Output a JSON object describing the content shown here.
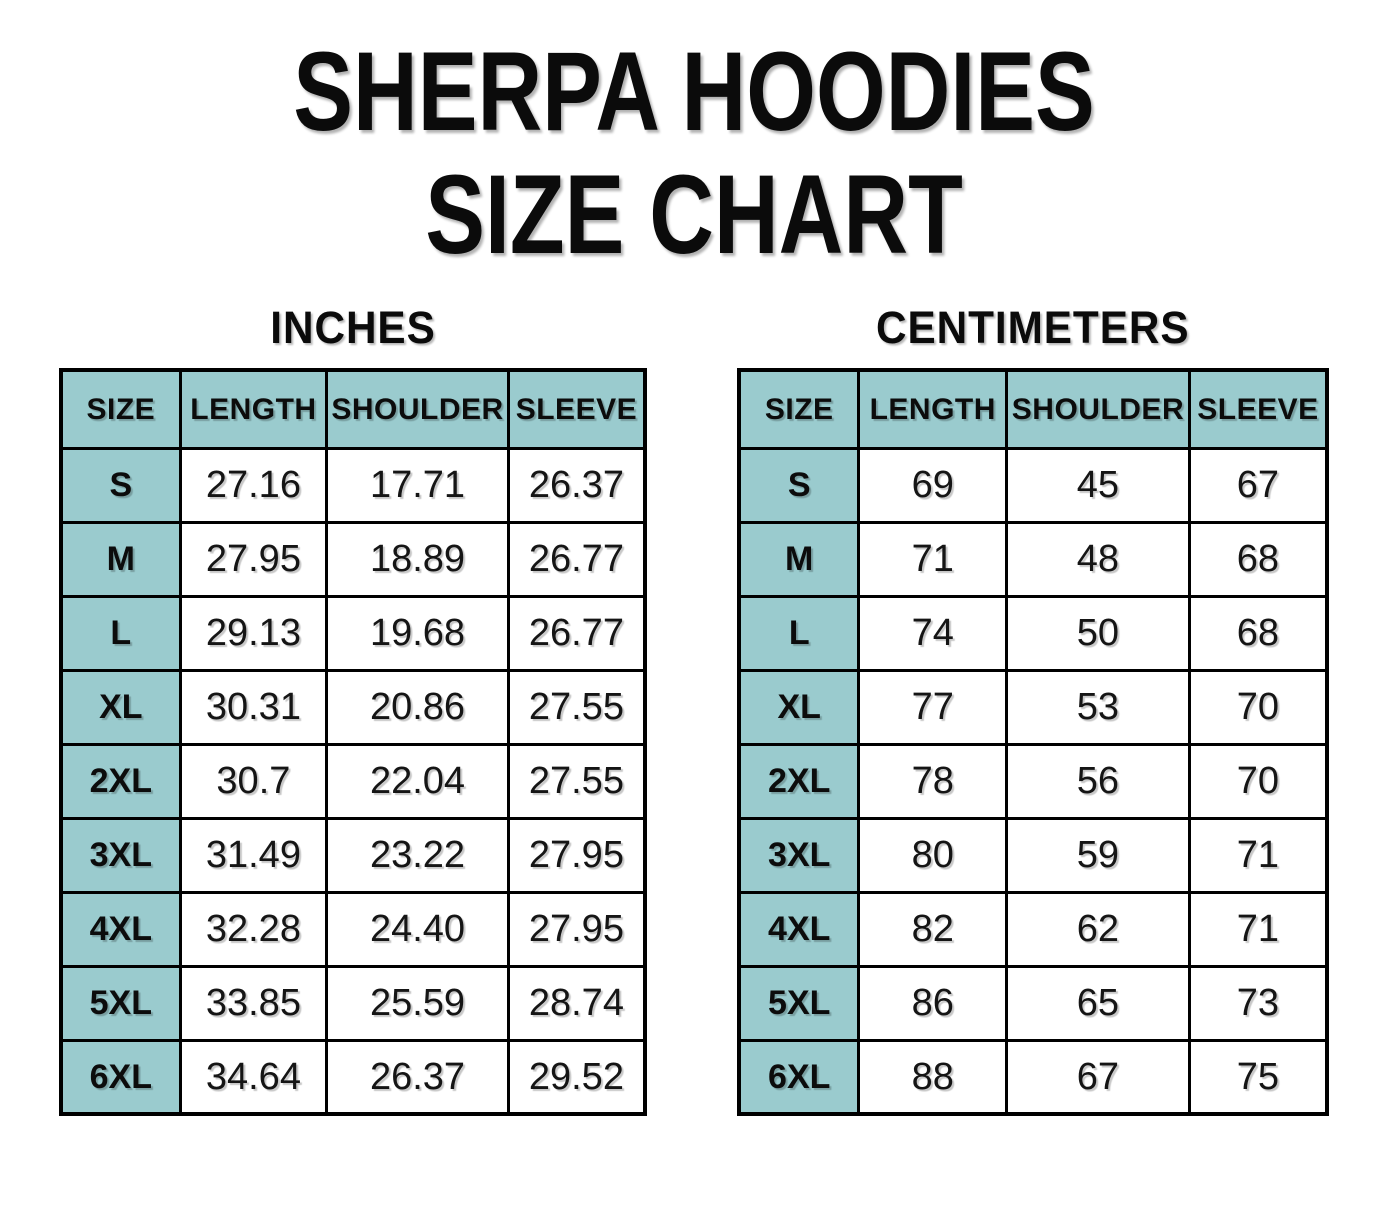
{
  "title": {
    "line1": "SHERPA HOODIES",
    "line2": "SIZE CHART"
  },
  "colors": {
    "header_teal": "#9acbce",
    "border": "#000000",
    "text": "#111111",
    "background": "#ffffff"
  },
  "tables": [
    {
      "unit_label": "INCHES",
      "headers": [
        "SIZE",
        "LENGTH",
        "SHOULDER",
        "SLEEVE"
      ],
      "rows": [
        [
          "S",
          "27.16",
          "17.71",
          "26.37"
        ],
        [
          "M",
          "27.95",
          "18.89",
          "26.77"
        ],
        [
          "L",
          "29.13",
          "19.68",
          "26.77"
        ],
        [
          "XL",
          "30.31",
          "20.86",
          "27.55"
        ],
        [
          "2XL",
          "30.7",
          "22.04",
          "27.55"
        ],
        [
          "3XL",
          "31.49",
          "23.22",
          "27.95"
        ],
        [
          "4XL",
          "32.28",
          "24.40",
          "27.95"
        ],
        [
          "5XL",
          "33.85",
          "25.59",
          "28.74"
        ],
        [
          "6XL",
          "34.64",
          "26.37",
          "29.52"
        ]
      ]
    },
    {
      "unit_label": "CENTIMETERS",
      "headers": [
        "SIZE",
        "LENGTH",
        "SHOULDER",
        "SLEEVE"
      ],
      "rows": [
        [
          "S",
          "69",
          "45",
          "67"
        ],
        [
          "M",
          "71",
          "48",
          "68"
        ],
        [
          "L",
          "74",
          "50",
          "68"
        ],
        [
          "XL",
          "77",
          "53",
          "70"
        ],
        [
          "2XL",
          "78",
          "56",
          "70"
        ],
        [
          "3XL",
          "80",
          "59",
          "71"
        ],
        [
          "4XL",
          "82",
          "62",
          "71"
        ],
        [
          "5XL",
          "86",
          "65",
          "73"
        ],
        [
          "6XL",
          "88",
          "67",
          "75"
        ]
      ]
    }
  ],
  "chart_data": [
    {
      "type": "table",
      "title": "SHERPA HOODIES SIZE CHART — INCHES",
      "columns": [
        "SIZE",
        "LENGTH",
        "SHOULDER",
        "SLEEVE"
      ],
      "rows": [
        [
          "S",
          27.16,
          17.71,
          26.37
        ],
        [
          "M",
          27.95,
          18.89,
          26.77
        ],
        [
          "L",
          29.13,
          19.68,
          26.77
        ],
        [
          "XL",
          30.31,
          20.86,
          27.55
        ],
        [
          "2XL",
          30.7,
          22.04,
          27.55
        ],
        [
          "3XL",
          31.49,
          23.22,
          27.95
        ],
        [
          "4XL",
          32.28,
          24.4,
          27.95
        ],
        [
          "5XL",
          33.85,
          25.59,
          28.74
        ],
        [
          "6XL",
          34.64,
          26.37,
          29.52
        ]
      ]
    },
    {
      "type": "table",
      "title": "SHERPA HOODIES SIZE CHART — CENTIMETERS",
      "columns": [
        "SIZE",
        "LENGTH",
        "SHOULDER",
        "SLEEVE"
      ],
      "rows": [
        [
          "S",
          69,
          45,
          67
        ],
        [
          "M",
          71,
          48,
          68
        ],
        [
          "L",
          74,
          50,
          68
        ],
        [
          "XL",
          77,
          53,
          70
        ],
        [
          "2XL",
          78,
          56,
          70
        ],
        [
          "3XL",
          80,
          59,
          71
        ],
        [
          "4XL",
          82,
          62,
          71
        ],
        [
          "5XL",
          86,
          65,
          73
        ],
        [
          "6XL",
          88,
          67,
          75
        ]
      ]
    }
  ]
}
